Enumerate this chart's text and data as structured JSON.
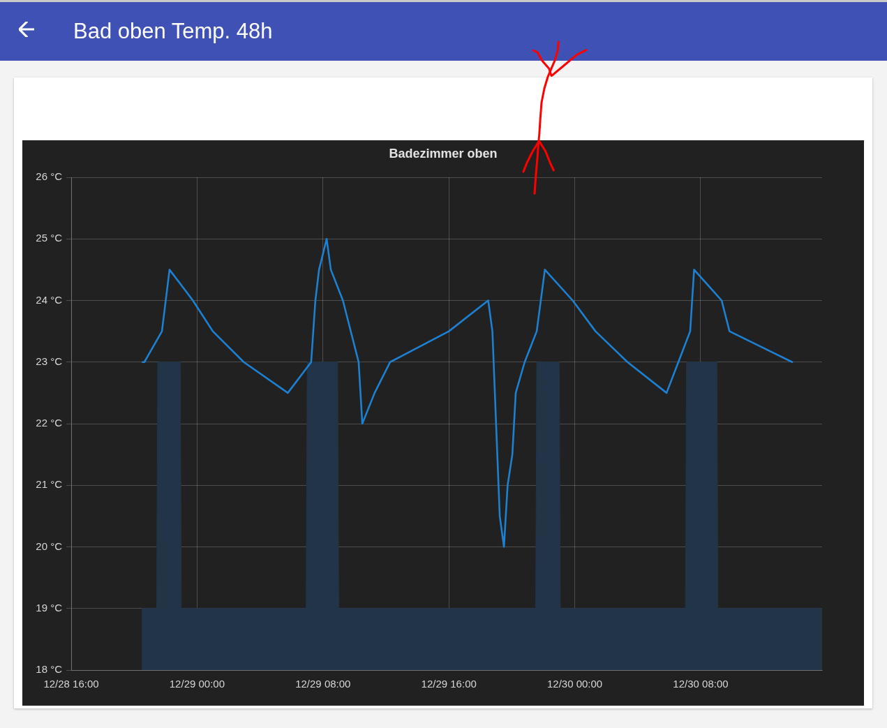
{
  "chart_data": {
    "type": "line",
    "title": "Bad oben Temp. 48h",
    "subtitle": "Badezimmer oben",
    "xlim": [
      "--12-28T16:00",
      "--12-30T15:43"
    ],
    "xticks": [
      {
        "value": "--12-28T16:00",
        "label": "12/28 16:00"
      },
      {
        "value": "--12-29T00:00",
        "label": "12/29 00:00"
      },
      {
        "value": "--12-29T08:00",
        "label": "12/29 08:00"
      },
      {
        "value": "--12-29T16:00",
        "label": "12/29 16:00"
      },
      {
        "value": "--12-30T00:00",
        "label": "12/30 00:00"
      },
      {
        "value": "--12-30T08:00",
        "label": "12/30 08:00"
      }
    ],
    "ylim": [
      18,
      26
    ],
    "yticks": [
      {
        "value": 18,
        "label": "18 °C"
      },
      {
        "value": 19,
        "label": "19 °C"
      },
      {
        "value": 20,
        "label": "20 °C"
      },
      {
        "value": 21,
        "label": "21 °C"
      },
      {
        "value": 22,
        "label": "22 °C"
      },
      {
        "value": 23,
        "label": "23 °C"
      },
      {
        "value": 24,
        "label": "24 °C"
      },
      {
        "value": 25,
        "label": "25 °C"
      },
      {
        "value": 26,
        "label": "26 °C"
      }
    ],
    "grid": true,
    "series": [
      {
        "type": "line",
        "color": "#1e80d0",
        "x": [
          "--12-28T20:32",
          "--12-28T20:39",
          "--12-28T21:46",
          "--12-28T22:15",
          "--12-28T23:44",
          "--12-29T01:00",
          "--12-29T02:58",
          "--12-29T05:46",
          "--12-29T07:15",
          "--12-29T07:31",
          "--12-29T07:45",
          "--12-29T08:14",
          "--12-29T08:30",
          "--12-29T09:16",
          "--12-29T10:16",
          "--12-29T10:30",
          "--12-29T11:17",
          "--12-29T12:16",
          "--12-29T16:00",
          "--12-29T18:30",
          "--12-29T18:46",
          "--12-29T19:14",
          "--12-29T19:30",
          "--12-29T19:44",
          "--12-29T20:02",
          "--12-29T20:15",
          "--12-29T20:49",
          "--12-29T21:35",
          "--12-29T22:06",
          "--12-29T23:52",
          "--12-30T01:19",
          "--12-30T03:21",
          "--12-30T05:50",
          "--12-30T07:20",
          "--12-30T07:35",
          "--12-30T09:20",
          "--12-30T09:50",
          "--12-30T13:49"
        ],
        "values": [
          23,
          23,
          23.5,
          24.5,
          24,
          23.5,
          23,
          22.5,
          23,
          24,
          24.5,
          25,
          24.5,
          24,
          23,
          22,
          22.5,
          23,
          23.5,
          24,
          23.5,
          20.5,
          20,
          21,
          21.5,
          22.5,
          23,
          23.5,
          24.5,
          24,
          23.5,
          23,
          22.5,
          23.5,
          24.5,
          24,
          23.5,
          23
        ]
      },
      {
        "type": "area",
        "color": "#223447",
        "x": [
          "--12-28T20:29",
          "--12-28T21:26",
          "--12-28T21:30",
          "--12-28T22:56",
          "--12-28T23:00",
          "--12-29T06:56",
          "--12-29T07:00",
          "--12-29T08:56",
          "--12-29T09:00",
          "--12-29T21:31",
          "--12-29T21:35",
          "--12-29T23:01",
          "--12-29T23:05",
          "--12-30T07:02",
          "--12-30T07:06",
          "--12-30T09:02",
          "--12-30T09:06",
          "--12-30T15:43"
        ],
        "values": [
          19,
          19,
          23,
          23,
          19,
          19,
          23,
          23,
          19,
          19,
          23,
          23,
          19,
          19,
          23,
          23,
          19,
          19
        ]
      }
    ]
  }
}
